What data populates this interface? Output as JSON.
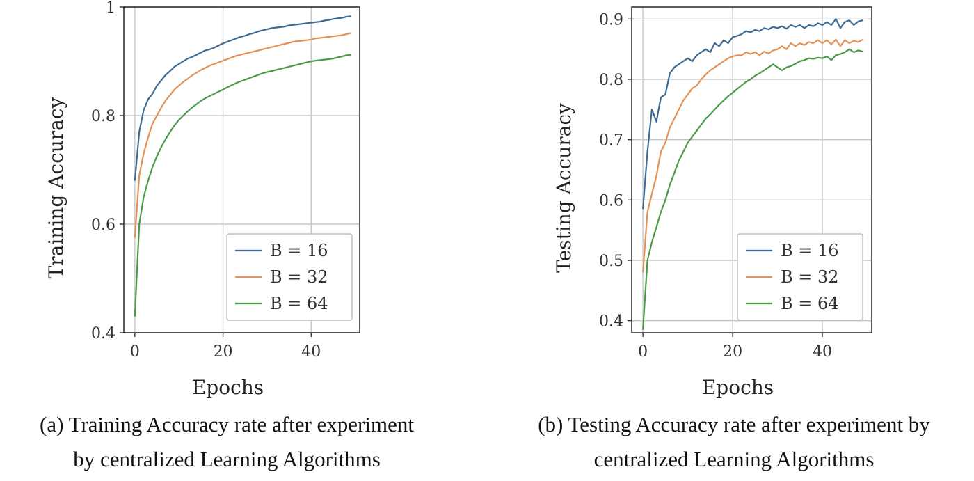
{
  "chart_data": [
    {
      "type": "line",
      "ylabel": "Training Accuracy",
      "xlabel": "Epochs",
      "caption_lines": [
        "(a) Training Accuracy rate after experiment",
        "by centralized Learning Algorithms"
      ],
      "xlim": [
        -2.5,
        51
      ],
      "ylim": [
        0.4,
        1.0
      ],
      "xticks": [
        0,
        20,
        40
      ],
      "xtick_labels": [
        "0",
        "20",
        "40"
      ],
      "yticks": [
        0.4,
        0.6,
        0.8,
        1.0
      ],
      "ytick_labels": [
        "0.4",
        "0.6",
        "0.8",
        "1"
      ],
      "grid": true,
      "legend_position": "bottom-right",
      "x": [
        0,
        1,
        2,
        3,
        4,
        5,
        6,
        7,
        8,
        9,
        10,
        11,
        12,
        13,
        14,
        15,
        16,
        17,
        18,
        19,
        20,
        21,
        22,
        23,
        24,
        25,
        26,
        27,
        28,
        29,
        30,
        31,
        32,
        33,
        34,
        35,
        36,
        37,
        38,
        39,
        40,
        41,
        42,
        43,
        44,
        45,
        46,
        47,
        48,
        49
      ],
      "series": [
        {
          "name": "B = 16",
          "color": "#3f6a91",
          "values": [
            0.68,
            0.77,
            0.81,
            0.83,
            0.84,
            0.855,
            0.865,
            0.875,
            0.882,
            0.89,
            0.895,
            0.9,
            0.905,
            0.908,
            0.912,
            0.916,
            0.92,
            0.922,
            0.925,
            0.929,
            0.933,
            0.936,
            0.939,
            0.942,
            0.945,
            0.947,
            0.95,
            0.952,
            0.955,
            0.957,
            0.959,
            0.961,
            0.962,
            0.963,
            0.964,
            0.966,
            0.967,
            0.968,
            0.969,
            0.97,
            0.971,
            0.972,
            0.973,
            0.975,
            0.976,
            0.978,
            0.979,
            0.98,
            0.982,
            0.983
          ]
        },
        {
          "name": "B = 32",
          "color": "#e39155",
          "values": [
            0.575,
            0.69,
            0.73,
            0.76,
            0.785,
            0.8,
            0.815,
            0.828,
            0.838,
            0.848,
            0.855,
            0.862,
            0.868,
            0.874,
            0.879,
            0.884,
            0.888,
            0.892,
            0.895,
            0.898,
            0.901,
            0.904,
            0.907,
            0.91,
            0.912,
            0.914,
            0.916,
            0.918,
            0.92,
            0.922,
            0.924,
            0.926,
            0.928,
            0.93,
            0.932,
            0.934,
            0.936,
            0.937,
            0.938,
            0.939,
            0.94,
            0.942,
            0.943,
            0.944,
            0.945,
            0.946,
            0.947,
            0.948,
            0.95,
            0.952
          ]
        },
        {
          "name": "B = 64",
          "color": "#4a9a48",
          "values": [
            0.43,
            0.6,
            0.65,
            0.68,
            0.705,
            0.725,
            0.742,
            0.757,
            0.77,
            0.782,
            0.792,
            0.8,
            0.808,
            0.815,
            0.821,
            0.827,
            0.832,
            0.836,
            0.84,
            0.844,
            0.848,
            0.852,
            0.856,
            0.86,
            0.863,
            0.866,
            0.869,
            0.872,
            0.875,
            0.878,
            0.88,
            0.882,
            0.884,
            0.886,
            0.888,
            0.89,
            0.892,
            0.894,
            0.896,
            0.898,
            0.9,
            0.901,
            0.902,
            0.903,
            0.904,
            0.905,
            0.907,
            0.909,
            0.911,
            0.912
          ]
        }
      ]
    },
    {
      "type": "line",
      "ylabel": "Testing Accuracy",
      "xlabel": "Epochs",
      "caption_lines": [
        "(b) Testing Accuracy rate after experiment by",
        "centralized Learning Algorithms"
      ],
      "xlim": [
        -2.5,
        51
      ],
      "ylim": [
        0.38,
        0.92
      ],
      "xticks": [
        0,
        20,
        40
      ],
      "xtick_labels": [
        "0",
        "20",
        "40"
      ],
      "yticks": [
        0.4,
        0.5,
        0.6,
        0.7,
        0.8,
        0.9
      ],
      "ytick_labels": [
        "0.4",
        "0.5",
        "0.6",
        "0.7",
        "0.8",
        "0.9"
      ],
      "grid": true,
      "legend_position": "bottom-right",
      "x": [
        0,
        1,
        2,
        3,
        4,
        5,
        6,
        7,
        8,
        9,
        10,
        11,
        12,
        13,
        14,
        15,
        16,
        17,
        18,
        19,
        20,
        21,
        22,
        23,
        24,
        25,
        26,
        27,
        28,
        29,
        30,
        31,
        32,
        33,
        34,
        35,
        36,
        37,
        38,
        39,
        40,
        41,
        42,
        43,
        44,
        45,
        46,
        47,
        48,
        49
      ],
      "series": [
        {
          "name": "B = 16",
          "color": "#3f6a91",
          "values": [
            0.585,
            0.68,
            0.75,
            0.73,
            0.77,
            0.775,
            0.81,
            0.82,
            0.825,
            0.83,
            0.835,
            0.83,
            0.84,
            0.845,
            0.85,
            0.845,
            0.86,
            0.855,
            0.865,
            0.86,
            0.87,
            0.872,
            0.875,
            0.88,
            0.878,
            0.882,
            0.88,
            0.885,
            0.883,
            0.887,
            0.885,
            0.888,
            0.884,
            0.89,
            0.887,
            0.89,
            0.885,
            0.89,
            0.888,
            0.893,
            0.89,
            0.895,
            0.89,
            0.9,
            0.885,
            0.895,
            0.898,
            0.89,
            0.896,
            0.898
          ]
        },
        {
          "name": "B = 32",
          "color": "#e39155",
          "values": [
            0.48,
            0.58,
            0.61,
            0.64,
            0.68,
            0.695,
            0.72,
            0.735,
            0.75,
            0.765,
            0.775,
            0.785,
            0.79,
            0.8,
            0.808,
            0.815,
            0.82,
            0.825,
            0.83,
            0.835,
            0.838,
            0.84,
            0.84,
            0.845,
            0.842,
            0.845,
            0.84,
            0.846,
            0.843,
            0.848,
            0.85,
            0.855,
            0.85,
            0.86,
            0.855,
            0.86,
            0.857,
            0.862,
            0.86,
            0.865,
            0.86,
            0.865,
            0.858,
            0.866,
            0.855,
            0.865,
            0.86,
            0.864,
            0.862,
            0.866
          ]
        },
        {
          "name": "B = 64",
          "color": "#4a9a48",
          "values": [
            0.385,
            0.5,
            0.53,
            0.555,
            0.58,
            0.6,
            0.625,
            0.645,
            0.665,
            0.68,
            0.695,
            0.705,
            0.715,
            0.725,
            0.735,
            0.742,
            0.75,
            0.758,
            0.765,
            0.772,
            0.778,
            0.784,
            0.79,
            0.796,
            0.8,
            0.806,
            0.81,
            0.815,
            0.82,
            0.825,
            0.82,
            0.815,
            0.82,
            0.822,
            0.826,
            0.83,
            0.832,
            0.835,
            0.834,
            0.836,
            0.835,
            0.838,
            0.832,
            0.84,
            0.842,
            0.845,
            0.85,
            0.845,
            0.848,
            0.846
          ]
        }
      ]
    }
  ]
}
